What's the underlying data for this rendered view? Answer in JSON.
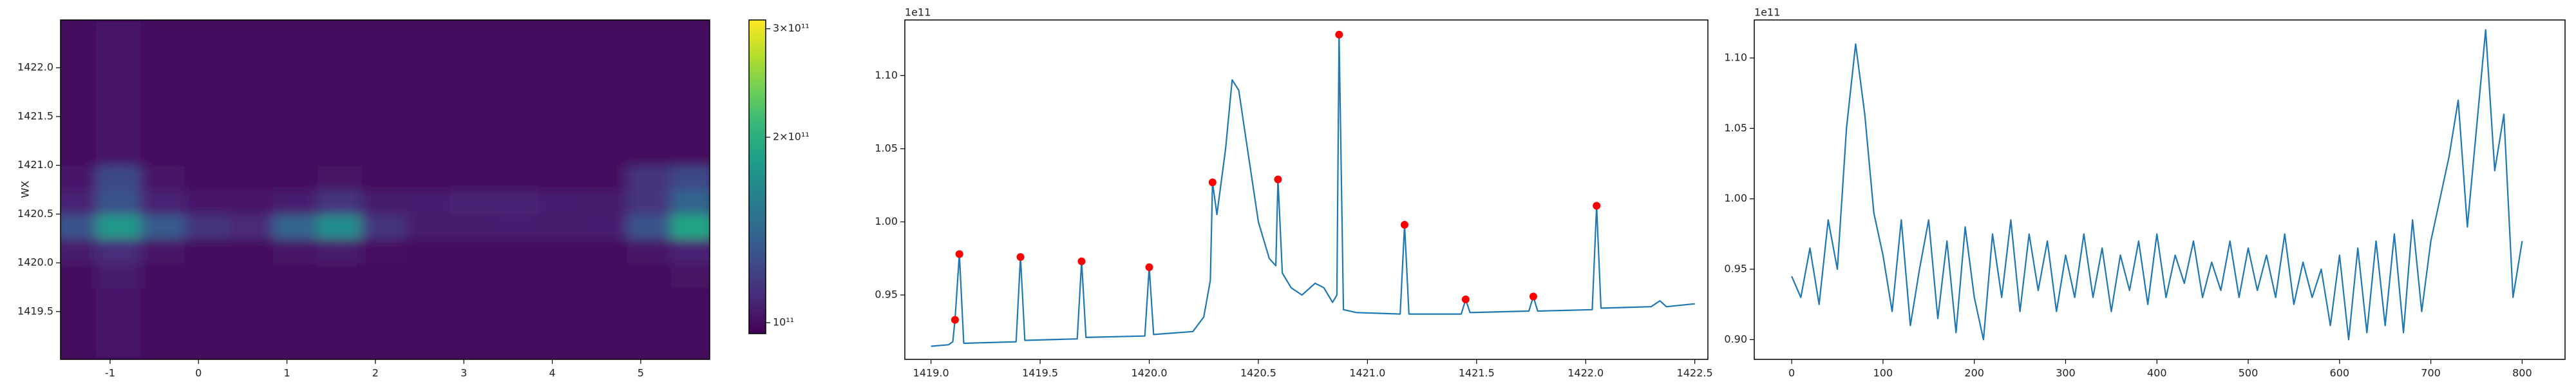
{
  "chart_data": [
    {
      "type": "heatmap",
      "ylabel": "WX",
      "cmap": "viridis",
      "x": [
        -1.4,
        -0.9,
        -0.4,
        0.1,
        0.6,
        1.1,
        1.6,
        2.1,
        2.6,
        3.1,
        3.6,
        4.1,
        4.6,
        5.1,
        5.6
      ],
      "y": [
        1419.125,
        1419.375,
        1419.625,
        1419.875,
        1420.125,
        1420.375,
        1420.625,
        1420.875,
        1421.125,
        1421.375,
        1421.625,
        1421.875,
        1422.125,
        1422.375
      ],
      "z": [
        [
          100000000000.0,
          104000000000.0,
          100000000000.0,
          100000000000.0,
          100000000000.0,
          100000000000.0,
          100000000000.0,
          100000000000.0,
          100000000000.0,
          100000000000.0,
          100000000000.0,
          100000000000.0,
          100000000000.0,
          100000000000.0,
          100000000000.0
        ],
        [
          100000000000.0,
          104000000000.0,
          100000000000.0,
          100000000000.0,
          100000000000.0,
          100000000000.0,
          100000000000.0,
          100000000000.0,
          100000000000.0,
          100000000000.0,
          100000000000.0,
          100000000000.0,
          100000000000.0,
          100000000000.0,
          100000000000.0
        ],
        [
          100000000000.0,
          104000000000.0,
          100000000000.0,
          100000000000.0,
          100000000000.0,
          100000000000.0,
          100000000000.0,
          100000000000.0,
          100000000000.0,
          100000000000.0,
          100000000000.0,
          100000000000.0,
          100000000000.0,
          100000000000.0,
          100000000000.0
        ],
        [
          100000000000.0,
          105000000000.0,
          100000000000.0,
          100000000000.0,
          100000000000.0,
          100000000000.0,
          100000000000.0,
          100000000000.0,
          100000000000.0,
          100000000000.0,
          100000000000.0,
          100000000000.0,
          100000000000.0,
          100000000000.0,
          102000000000.0
        ],
        [
          105000000000.0,
          112000000000.0,
          103000000000.0,
          100000000000.0,
          100000000000.0,
          103000000000.0,
          105000000000.0,
          101000000000.0,
          100000000000.0,
          100000000000.0,
          100000000000.0,
          100000000000.0,
          100000000000.0,
          103000000000.0,
          108000000000.0
        ],
        [
          130000000000.0,
          180000000000.0,
          135000000000.0,
          115000000000.0,
          110000000000.0,
          140000000000.0,
          170000000000.0,
          115000000000.0,
          105000000000.0,
          105000000000.0,
          106000000000.0,
          105000000000.0,
          106000000000.0,
          130000000000.0,
          190000000000.0
        ],
        [
          108000000000.0,
          130000000000.0,
          108000000000.0,
          104000000000.0,
          104000000000.0,
          106000000000.0,
          115000000000.0,
          105000000000.0,
          106000000000.0,
          108000000000.0,
          108000000000.0,
          106000000000.0,
          105000000000.0,
          115000000000.0,
          140000000000.0
        ],
        [
          104000000000.0,
          125000000000.0,
          103000000000.0,
          100000000000.0,
          100000000000.0,
          100000000000.0,
          102000000000.0,
          100000000000.0,
          100000000000.0,
          100000000000.0,
          100000000000.0,
          100000000000.0,
          100000000000.0,
          115000000000.0,
          125000000000.0
        ],
        [
          100000000000.0,
          104000000000.0,
          100000000000.0,
          100000000000.0,
          100000000000.0,
          100000000000.0,
          100000000000.0,
          100000000000.0,
          100000000000.0,
          100000000000.0,
          100000000000.0,
          100000000000.0,
          100000000000.0,
          100000000000.0,
          100000000000.0
        ],
        [
          100000000000.0,
          104000000000.0,
          100000000000.0,
          100000000000.0,
          100000000000.0,
          100000000000.0,
          100000000000.0,
          100000000000.0,
          100000000000.0,
          100000000000.0,
          100000000000.0,
          100000000000.0,
          100000000000.0,
          100000000000.0,
          100000000000.0
        ],
        [
          100000000000.0,
          104000000000.0,
          100000000000.0,
          100000000000.0,
          100000000000.0,
          100000000000.0,
          100000000000.0,
          100000000000.0,
          100000000000.0,
          100000000000.0,
          100000000000.0,
          100000000000.0,
          100000000000.0,
          100000000000.0,
          100000000000.0
        ],
        [
          100000000000.0,
          104000000000.0,
          100000000000.0,
          100000000000.0,
          100000000000.0,
          100000000000.0,
          100000000000.0,
          100000000000.0,
          100000000000.0,
          100000000000.0,
          100000000000.0,
          100000000000.0,
          100000000000.0,
          100000000000.0,
          100000000000.0
        ],
        [
          100000000000.0,
          104000000000.0,
          100000000000.0,
          100000000000.0,
          100000000000.0,
          100000000000.0,
          100000000000.0,
          100000000000.0,
          100000000000.0,
          100000000000.0,
          100000000000.0,
          100000000000.0,
          100000000000.0,
          100000000000.0,
          100000000000.0
        ],
        [
          100000000000.0,
          104000000000.0,
          100000000000.0,
          100000000000.0,
          100000000000.0,
          100000000000.0,
          100000000000.0,
          100000000000.0,
          100000000000.0,
          100000000000.0,
          100000000000.0,
          100000000000.0,
          100000000000.0,
          100000000000.0,
          100000000000.0
        ]
      ],
      "xlim": [
        -1.56,
        5.78
      ],
      "ylim": [
        1419.01,
        1422.49
      ],
      "xticks": [
        -1,
        0,
        1,
        2,
        3,
        4,
        5
      ],
      "yticks": [
        1419.5,
        {
          "value": 1420,
          "label": "1420.0"
        },
        1420.5,
        {
          "value": 1421,
          "label": "1421.0"
        },
        1421.5,
        {
          "value": 1422,
          "label": "1422.0"
        }
      ],
      "colorbar": {
        "scale": "log",
        "lim": [
          96000000000.0,
          310000000000.0
        ],
        "ticks": [
          {
            "value": 100000000000.0,
            "label": "10¹¹"
          },
          {
            "value": 200000000000.0,
            "label": "2×10¹¹"
          },
          {
            "value": 300000000000.0,
            "label": "3×10¹¹"
          }
        ]
      }
    },
    {
      "type": "line",
      "offset_label": "1e11",
      "x": [
        1419.0,
        1419.08,
        1419.1,
        1419.11,
        1419.13,
        1419.15,
        1419.39,
        1419.41,
        1419.43,
        1419.67,
        1419.69,
        1419.71,
        1419.98,
        1420.0,
        1420.02,
        1420.2,
        1420.25,
        1420.28,
        1420.29,
        1420.31,
        1420.35,
        1420.38,
        1420.41,
        1420.45,
        1420.5,
        1420.55,
        1420.58,
        1420.59,
        1420.61,
        1420.65,
        1420.7,
        1420.76,
        1420.8,
        1420.84,
        1420.86,
        1420.87,
        1420.89,
        1420.95,
        1421.15,
        1421.17,
        1421.19,
        1421.43,
        1421.45,
        1421.47,
        1421.74,
        1421.76,
        1421.78,
        1422.03,
        1422.05,
        1422.07,
        1422.3,
        1422.34,
        1422.37,
        1422.5
      ],
      "series": [
        {
          "color": "#1f77b4",
          "values": [
            0.915,
            0.916,
            0.918,
            0.933,
            0.978,
            0.917,
            0.918,
            0.976,
            0.919,
            0.92,
            0.973,
            0.921,
            0.922,
            0.969,
            0.923,
            0.925,
            0.935,
            0.96,
            1.027,
            1.005,
            1.05,
            1.097,
            1.09,
            1.05,
            1.0,
            0.975,
            0.97,
            1.029,
            0.965,
            0.955,
            0.95,
            0.958,
            0.955,
            0.945,
            0.95,
            1.128,
            0.94,
            0.938,
            0.937,
            0.998,
            0.937,
            0.937,
            0.947,
            0.938,
            0.939,
            0.949,
            0.939,
            0.94,
            1.011,
            0.941,
            0.942,
            0.946,
            0.942,
            0.944
          ]
        },
        {
          "color": "#ff0000",
          "mode": "markers",
          "x": [
            1419.11,
            1419.13,
            1419.41,
            1419.69,
            1420.0,
            1420.29,
            1420.59,
            1420.87,
            1421.17,
            1421.45,
            1421.76,
            1422.05
          ],
          "values": [
            0.933,
            0.978,
            0.976,
            0.973,
            0.969,
            1.027,
            1.029,
            1.128,
            0.998,
            0.947,
            0.949,
            1.011
          ]
        }
      ],
      "xlim": [
        1418.88,
        1422.56
      ],
      "ylim": [
        0.906,
        1.138
      ],
      "xticks": [
        {
          "value": 1419,
          "label": "1419.0"
        },
        1419.5,
        {
          "value": 1420,
          "label": "1420.0"
        },
        1420.5,
        {
          "value": 1421,
          "label": "1421.0"
        },
        1421.5,
        {
          "value": 1422,
          "label": "1422.0"
        },
        1422.5
      ],
      "yticks": [
        0.95,
        {
          "value": 1,
          "label": "1.00"
        },
        1.05,
        {
          "value": 1.1,
          "label": "1.10"
        }
      ]
    },
    {
      "type": "line",
      "offset_label": "1e11",
      "x": [
        0,
        10,
        20,
        30,
        40,
        50,
        60,
        70,
        80,
        90,
        100,
        110,
        120,
        130,
        140,
        150,
        160,
        170,
        180,
        190,
        200,
        210,
        220,
        230,
        240,
        250,
        260,
        270,
        280,
        290,
        300,
        310,
        320,
        330,
        340,
        350,
        360,
        370,
        380,
        390,
        400,
        410,
        420,
        430,
        440,
        450,
        460,
        470,
        480,
        490,
        500,
        510,
        520,
        530,
        540,
        550,
        560,
        570,
        580,
        590,
        600,
        610,
        620,
        630,
        640,
        650,
        660,
        670,
        680,
        690,
        700,
        710,
        720,
        730,
        740,
        750,
        760,
        770,
        780,
        790,
        800
      ],
      "series": [
        {
          "color": "#1f77b4",
          "values": [
            0.945,
            0.93,
            0.965,
            0.925,
            0.985,
            0.95,
            1.05,
            1.11,
            1.06,
            0.99,
            0.96,
            0.92,
            0.985,
            0.91,
            0.95,
            0.985,
            0.915,
            0.97,
            0.905,
            0.98,
            0.93,
            0.9,
            0.975,
            0.93,
            0.985,
            0.92,
            0.975,
            0.935,
            0.97,
            0.92,
            0.96,
            0.93,
            0.975,
            0.93,
            0.965,
            0.92,
            0.96,
            0.935,
            0.97,
            0.925,
            0.975,
            0.93,
            0.96,
            0.94,
            0.97,
            0.93,
            0.955,
            0.935,
            0.97,
            0.93,
            0.965,
            0.935,
            0.96,
            0.93,
            0.975,
            0.925,
            0.955,
            0.93,
            0.95,
            0.91,
            0.96,
            0.9,
            0.965,
            0.905,
            0.97,
            0.91,
            0.975,
            0.905,
            0.985,
            0.92,
            0.97,
            1.0,
            1.03,
            1.07,
            0.98,
            1.05,
            1.12,
            1.02,
            1.06,
            0.93,
            0.97
          ]
        }
      ],
      "xlim": [
        -41,
        847
      ],
      "ylim": [
        0.886,
        1.127
      ],
      "xticks": [
        0,
        100,
        200,
        300,
        400,
        500,
        600,
        700,
        800
      ],
      "yticks": [
        {
          "value": 0.9,
          "label": "0.90"
        },
        0.95,
        {
          "value": 1,
          "label": "1.00"
        },
        1.05,
        {
          "value": 1.1,
          "label": "1.10"
        }
      ]
    }
  ]
}
